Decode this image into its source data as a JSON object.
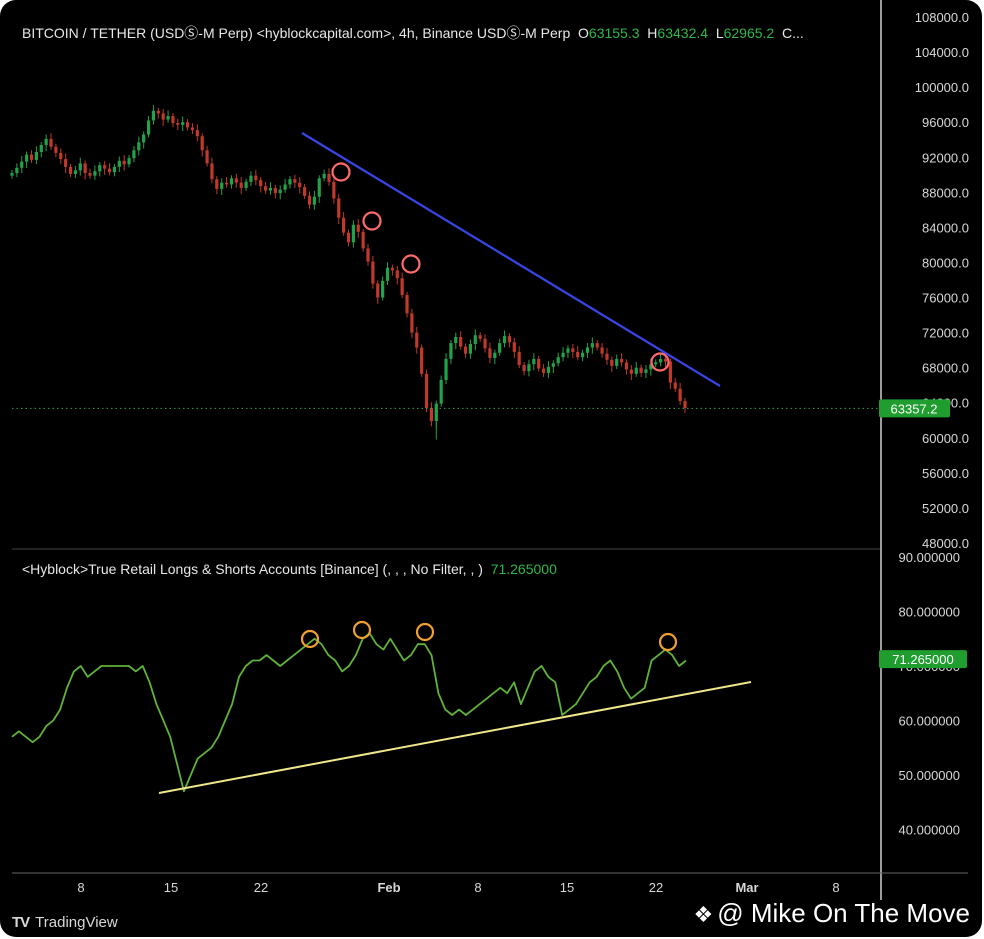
{
  "price_header": {
    "title": "BITCOIN / TETHER (USDⓈ-M Perp) <hyblockcapital.com>, 4h, Binance USDⓈ-M Perp",
    "o_label": "O",
    "o_value": "63155.3",
    "h_label": "H",
    "h_value": "63432.4",
    "l_label": "L",
    "l_value": "62965.2",
    "c_label": "C..."
  },
  "indicator_header": {
    "title": "<Hyblock>True Retail Longs & Shorts Accounts [Binance] (, , , No Filter, , )",
    "value": "71.265000"
  },
  "footer": {
    "logo": "TradingView",
    "watermark": "@ Mike On The Move"
  },
  "colors": {
    "up": "#22a34a",
    "down": "#c0392b",
    "indicator": "#5fb33a",
    "trendline_price": "#3846e6",
    "trendline_indicator": "#f0e68c",
    "marker_price": "#ff6b6b",
    "marker_indicator": "#f0a030",
    "label_bg": "#1f9d2f"
  },
  "chart_data": [
    {
      "type": "candlestick",
      "price_axis": [
        "108000.0",
        "104000.0",
        "100000.0",
        "96000.0",
        "92000.0",
        "88000.0",
        "84000.0",
        "80000.0",
        "76000.0",
        "72000.0",
        "68000.0",
        "64000.0",
        "60000.0",
        "56000.0",
        "52000.0",
        "48000.0"
      ],
      "ylim": [
        48000,
        108000
      ],
      "last_price": 63357.2,
      "last_price_label": "63357.2",
      "x_ticks": [
        "8",
        "15",
        "22",
        "Feb",
        "8",
        "15",
        "22",
        "Mar",
        "8"
      ],
      "close_series": [
        90200,
        90800,
        91500,
        92300,
        91700,
        92600,
        93400,
        94100,
        93200,
        92500,
        91800,
        90900,
        90100,
        90500,
        91300,
        90200,
        89900,
        90400,
        91100,
        90700,
        90300,
        90900,
        91600,
        91200,
        91900,
        92800,
        93700,
        94600,
        96200,
        97300,
        97000,
        96300,
        96700,
        95900,
        95700,
        96000,
        95400,
        95100,
        94400,
        92800,
        91300,
        89500,
        88400,
        89100,
        88900,
        89600,
        89100,
        88500,
        89200,
        89900,
        89400,
        88700,
        88200,
        88500,
        87900,
        88300,
        88900,
        89500,
        89100,
        88600,
        87600,
        86600,
        87500,
        89600,
        90100,
        89200,
        87300,
        85100,
        83400,
        82300,
        84300,
        83500,
        81600,
        80100,
        77600,
        76000,
        77900,
        79400,
        79100,
        78200,
        76300,
        74200,
        72000,
        70300,
        67300,
        63400,
        61900,
        63900,
        66600,
        69000,
        70800,
        71500,
        70400,
        69600,
        70700,
        71700,
        71300,
        70200,
        69100,
        69700,
        70800,
        71600,
        70900,
        69800,
        68300,
        67600,
        68400,
        69000,
        67900,
        67400,
        68100,
        68500,
        69200,
        69700,
        70200,
        69800,
        69200,
        69700,
        70300,
        70800,
        70300,
        69600,
        68900,
        68200,
        69000,
        68600,
        67800,
        67300,
        68000,
        67400,
        67800,
        68400,
        68600,
        69000,
        68700,
        66300,
        65600,
        64200,
        63400
      ]
    },
    {
      "type": "line",
      "name": "True Retail Longs & Shorts Accounts",
      "y_axis": [
        "90.000000",
        "80.000000",
        "70.000000",
        "60.000000",
        "50.000000",
        "40.000000"
      ],
      "ylim": [
        32,
        90
      ],
      "last_value": 71.265,
      "last_value_label": "71.265000",
      "values": [
        57,
        58,
        57,
        56,
        57,
        59,
        60,
        62,
        66,
        69,
        70,
        68,
        69,
        70,
        70,
        70,
        70,
        70,
        69,
        70,
        67,
        63,
        60,
        57,
        52,
        47,
        50,
        53,
        54,
        55,
        57,
        60,
        63,
        68,
        70,
        71,
        71,
        72,
        71,
        70,
        71,
        72,
        73,
        74,
        75,
        74,
        72,
        71,
        69,
        70,
        72,
        75,
        76,
        74,
        73,
        75,
        73,
        71,
        72,
        74,
        74,
        72,
        65,
        62,
        61,
        62,
        61,
        62,
        63,
        64,
        65,
        66,
        65,
        67,
        63,
        66,
        69,
        70,
        68,
        67,
        61,
        62,
        63,
        65,
        67,
        68,
        70,
        71,
        69,
        66,
        64,
        65,
        66,
        71,
        72,
        73,
        72,
        70,
        71
      ]
    }
  ]
}
